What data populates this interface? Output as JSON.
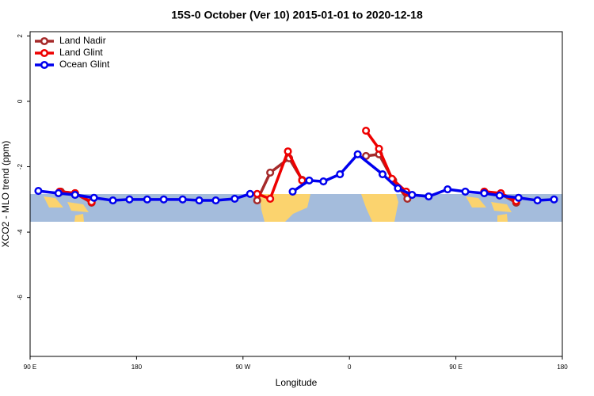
{
  "chart_data": {
    "type": "line",
    "title": "15S-0 October (Ver 10)   2015-01-01 to 2020-12-18",
    "xlabel": "Longitude",
    "ylabel": "XCO2 - MLO trend (ppm)",
    "xlim": [
      90,
      540
    ],
    "ylim": [
      -7.8,
      2.13
    ],
    "xticks": [
      {
        "value": 90,
        "label": "90 E"
      },
      180,
      {
        "value": 270,
        "label": "90 W"
      },
      {
        "value": 360,
        "label": "0"
      },
      {
        "value": 450,
        "label": "90 E"
      },
      {
        "value": 540,
        "label": "180"
      }
    ],
    "yticks": [
      2,
      0,
      -2,
      -4,
      -6
    ],
    "legend": "top-left",
    "series": [
      {
        "name": "Land Nadir",
        "color": "#a52a2a",
        "x": [
          116,
          128,
          142,
          null,
          282,
          293,
          309,
          320,
          null,
          374,
          385,
          397,
          409,
          null,
          474,
          488,
          501
        ],
        "values": [
          -2.76,
          -2.81,
          -3.1,
          null,
          -3.03,
          -2.18,
          -1.74,
          -2.4,
          null,
          -1.67,
          -1.62,
          -2.42,
          -2.98,
          null,
          -2.76,
          -2.83,
          -3.1
        ]
      },
      {
        "name": "Land Glint",
        "color": "#ee0000",
        "x": [
          115,
          128,
          142,
          null,
          282,
          293,
          308,
          320,
          null,
          374,
          385,
          396,
          408,
          null,
          474,
          488,
          501
        ],
        "values": [
          -2.76,
          -2.81,
          -3.08,
          null,
          -2.83,
          -2.98,
          -1.53,
          -2.42,
          null,
          -0.9,
          -1.45,
          -2.37,
          -2.76,
          null,
          -2.76,
          -2.81,
          -3.05
        ]
      },
      {
        "name": "Ocean Glint",
        "color": "#0000ee",
        "x": [
          97,
          114,
          128,
          144,
          160,
          174,
          189,
          203,
          219,
          233,
          247,
          263,
          276,
          null,
          312,
          326,
          338,
          352,
          367,
          388,
          401,
          413,
          427,
          443,
          458,
          474,
          487,
          503,
          519,
          533
        ],
        "values": [
          -2.74,
          -2.81,
          -2.86,
          -2.95,
          -3.03,
          -3.0,
          -3.0,
          -3.0,
          -3.0,
          -3.03,
          -3.03,
          -2.98,
          -2.83,
          null,
          -2.76,
          -2.42,
          -2.45,
          -2.23,
          -1.62,
          -2.23,
          -2.66,
          -2.86,
          -2.91,
          -2.69,
          -2.76,
          -2.81,
          -2.88,
          -2.95,
          -3.03,
          -3.0
        ]
      }
    ]
  }
}
